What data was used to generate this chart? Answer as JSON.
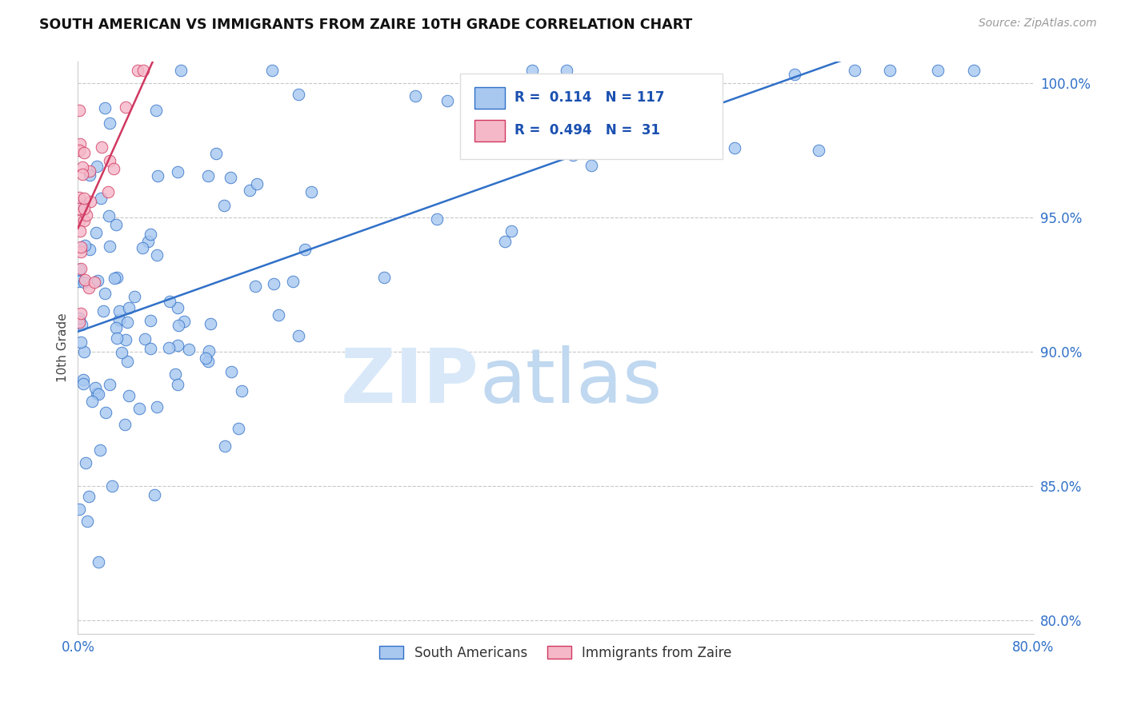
{
  "title": "SOUTH AMERICAN VS IMMIGRANTS FROM ZAIRE 10TH GRADE CORRELATION CHART",
  "source": "Source: ZipAtlas.com",
  "ylabel": "10th Grade",
  "xlim": [
    0.0,
    0.8
  ],
  "ylim": [
    0.795,
    1.008
  ],
  "xticks": [
    0.0,
    0.1,
    0.2,
    0.3,
    0.4,
    0.5,
    0.6,
    0.7,
    0.8
  ],
  "xticklabels": [
    "0.0%",
    "",
    "",
    "",
    "",
    "",
    "",
    "",
    "80.0%"
  ],
  "yticks": [
    0.8,
    0.85,
    0.9,
    0.95,
    1.0
  ],
  "yticklabels": [
    "80.0%",
    "85.0%",
    "90.0%",
    "95.0%",
    "100.0%"
  ],
  "blue_R": 0.114,
  "blue_N": 117,
  "pink_R": 0.494,
  "pink_N": 31,
  "blue_color": "#a8c8f0",
  "pink_color": "#f5b8c8",
  "blue_line_color": "#3070c8",
  "pink_line_color": "#d03860",
  "legend_R_color": "#1a50b0",
  "legend_label1": "South Americans",
  "legend_label2": "Immigrants from Zaire",
  "blue_seed": 12345,
  "pink_seed": 99999
}
